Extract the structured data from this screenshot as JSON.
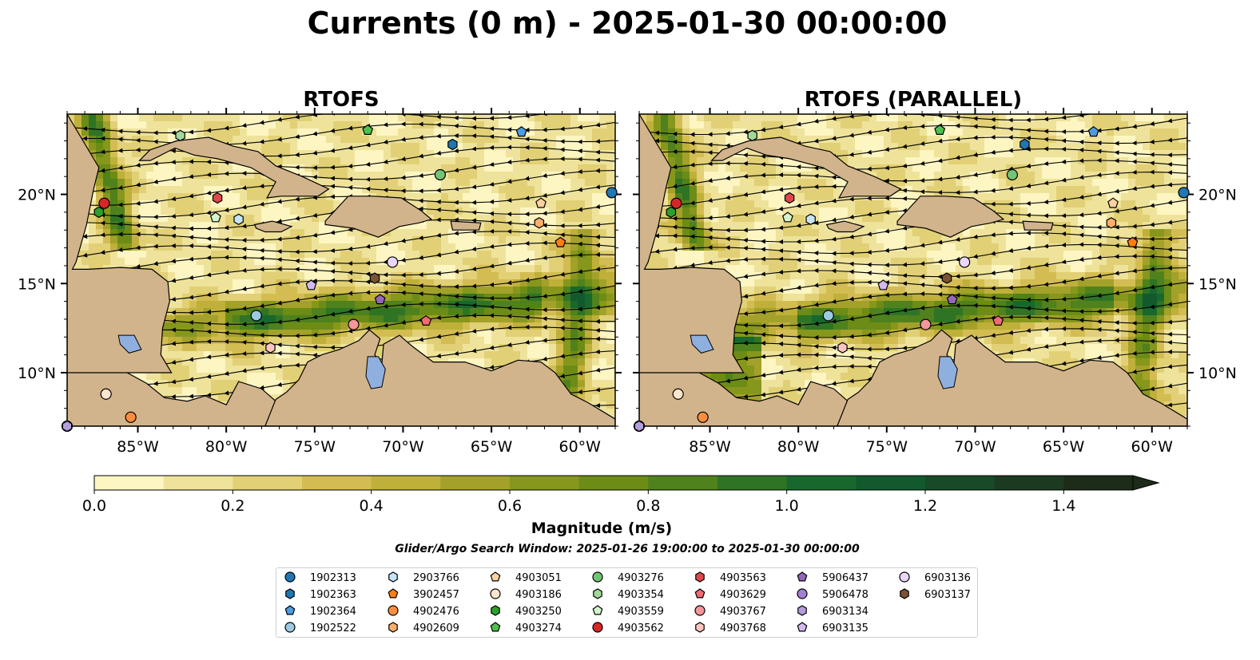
{
  "title": "Currents (0 m) - 2025-01-30 00:00:00",
  "panels": [
    {
      "title": "RTOFS",
      "variant": "left"
    },
    {
      "title": "RTOFS (PARALLEL)",
      "variant": "right"
    }
  ],
  "map": {
    "lon_range": [
      -89,
      -58
    ],
    "lat_range": [
      7,
      24.5
    ],
    "lon_ticks": [
      {
        "value": -85,
        "label": "85°W"
      },
      {
        "value": -80,
        "label": "80°W"
      },
      {
        "value": -75,
        "label": "75°W"
      },
      {
        "value": -70,
        "label": "70°W"
      },
      {
        "value": -65,
        "label": "65°W"
      },
      {
        "value": -60,
        "label": "60°W"
      }
    ],
    "lat_ticks": [
      {
        "value": 10,
        "label": "10°N"
      },
      {
        "value": 15,
        "label": "15°N"
      },
      {
        "value": 20,
        "label": "20°N"
      }
    ],
    "land_color": "#d2b48c",
    "lake_color": "#8fb0de",
    "river_color": "#9aaec6"
  },
  "colorbar": {
    "label": "Magnitude (m/s)",
    "min": 0.0,
    "max": 1.5,
    "extend": "max",
    "ticks": [
      {
        "value": 0.0,
        "label": "0.0"
      },
      {
        "value": 0.2,
        "label": "0.2"
      },
      {
        "value": 0.4,
        "label": "0.4"
      },
      {
        "value": 0.6,
        "label": "0.6"
      },
      {
        "value": 0.8,
        "label": "0.8"
      },
      {
        "value": 1.0,
        "label": "1.0"
      },
      {
        "value": 1.2,
        "label": "1.2"
      },
      {
        "value": 1.4,
        "label": "1.4"
      }
    ],
    "colors": [
      "#fdf5c2",
      "#efe39b",
      "#e1d075",
      "#d3bd52",
      "#bfb03a",
      "#a3a12a",
      "#86971c",
      "#6c8c16",
      "#4f811c",
      "#2f7425",
      "#18682e",
      "#125a2e",
      "#174a26",
      "#1c3a1f",
      "#1c2c18"
    ]
  },
  "search_window": "Glider/Argo Search Window: 2025-01-26 19:00:00 to 2025-01-30 00:00:00",
  "legend": [
    {
      "id": "1902313",
      "marker": "circle",
      "color": "#1f77b4"
    },
    {
      "id": "1902363",
      "marker": "hexagon",
      "color": "#1f77b4"
    },
    {
      "id": "1902364",
      "marker": "pentagon",
      "color": "#4e9be0"
    },
    {
      "id": "1902522",
      "marker": "circle",
      "color": "#9ecae1"
    },
    {
      "id": "2903766",
      "marker": "hexagon",
      "color": "#c6e4f5"
    },
    {
      "id": "3902457",
      "marker": "pentagon",
      "color": "#ff7f0e"
    },
    {
      "id": "4902476",
      "marker": "circle",
      "color": "#fd8d3c"
    },
    {
      "id": "4902609",
      "marker": "hexagon",
      "color": "#fdae6b"
    },
    {
      "id": "4903051",
      "marker": "pentagon",
      "color": "#fdd0a2"
    },
    {
      "id": "4903186",
      "marker": "circle",
      "color": "#fee6ce"
    },
    {
      "id": "4903250",
      "marker": "hexagon",
      "color": "#2ca02c"
    },
    {
      "id": "4903274",
      "marker": "pentagon",
      "color": "#4fbf4f"
    },
    {
      "id": "4903276",
      "marker": "circle",
      "color": "#74c476"
    },
    {
      "id": "4903354",
      "marker": "hexagon",
      "color": "#a1d99b"
    },
    {
      "id": "4903559",
      "marker": "pentagon",
      "color": "#d3f5cc"
    },
    {
      "id": "4903562",
      "marker": "circle",
      "color": "#d62728"
    },
    {
      "id": "4903563",
      "marker": "hexagon",
      "color": "#e0474c"
    },
    {
      "id": "4903629",
      "marker": "pentagon",
      "color": "#f06b72"
    },
    {
      "id": "4903767",
      "marker": "circle",
      "color": "#f4969a"
    },
    {
      "id": "4903768",
      "marker": "hexagon",
      "color": "#fcc5c0"
    },
    {
      "id": "5906437",
      "marker": "pentagon",
      "color": "#9467bd"
    },
    {
      "id": "5906478",
      "marker": "circle",
      "color": "#a57fd1"
    },
    {
      "id": "6903134",
      "marker": "hexagon",
      "color": "#b39ddb"
    },
    {
      "id": "6903135",
      "marker": "pentagon",
      "color": "#d4b9f0"
    },
    {
      "id": "6903136",
      "marker": "circle",
      "color": "#ead6fb"
    },
    {
      "id": "6903137",
      "marker": "hexagon",
      "color": "#7b5236"
    }
  ],
  "floats": [
    {
      "id": "1902313",
      "lon": -58.2,
      "lat": 20.1
    },
    {
      "id": "1902363",
      "lon": -67.2,
      "lat": 22.8
    },
    {
      "id": "1902364",
      "lon": -63.3,
      "lat": 23.5
    },
    {
      "id": "1902522",
      "lon": -78.3,
      "lat": 13.2
    },
    {
      "id": "2903766",
      "lon": -79.3,
      "lat": 18.6
    },
    {
      "id": "3902457",
      "lon": -61.1,
      "lat": 17.3
    },
    {
      "id": "4902476",
      "lon": -85.4,
      "lat": 7.5
    },
    {
      "id": "4902609",
      "lon": -62.3,
      "lat": 18.4
    },
    {
      "id": "4903051",
      "lon": -62.2,
      "lat": 19.5
    },
    {
      "id": "4903186",
      "lon": -86.8,
      "lat": 8.8
    },
    {
      "id": "4903250",
      "lon": -87.2,
      "lat": 19.0
    },
    {
      "id": "4903274",
      "lon": -72.0,
      "lat": 23.6
    },
    {
      "id": "4903276",
      "lon": -67.9,
      "lat": 21.1
    },
    {
      "id": "4903354",
      "lon": -82.6,
      "lat": 23.3
    },
    {
      "id": "4903559",
      "lon": -80.6,
      "lat": 18.7
    },
    {
      "id": "4903562",
      "lon": -86.9,
      "lat": 19.5
    },
    {
      "id": "4903563",
      "lon": -80.5,
      "lat": 19.8
    },
    {
      "id": "4903629",
      "lon": -68.7,
      "lat": 12.9
    },
    {
      "id": "4903767",
      "lon": -72.8,
      "lat": 12.7
    },
    {
      "id": "4903768",
      "lon": -77.5,
      "lat": 11.4
    },
    {
      "id": "5906437",
      "lon": -71.3,
      "lat": 14.1
    },
    {
      "id": "5906478",
      "lon": -89.0,
      "lat": 7.0
    },
    {
      "id": "6903134",
      "lon": -89.0,
      "lat": 7.0
    },
    {
      "id": "6903135",
      "lon": -75.2,
      "lat": 14.9
    },
    {
      "id": "6903136",
      "lon": -70.6,
      "lat": 16.2
    },
    {
      "id": "6903137",
      "lon": -71.6,
      "lat": 15.3
    }
  ]
}
